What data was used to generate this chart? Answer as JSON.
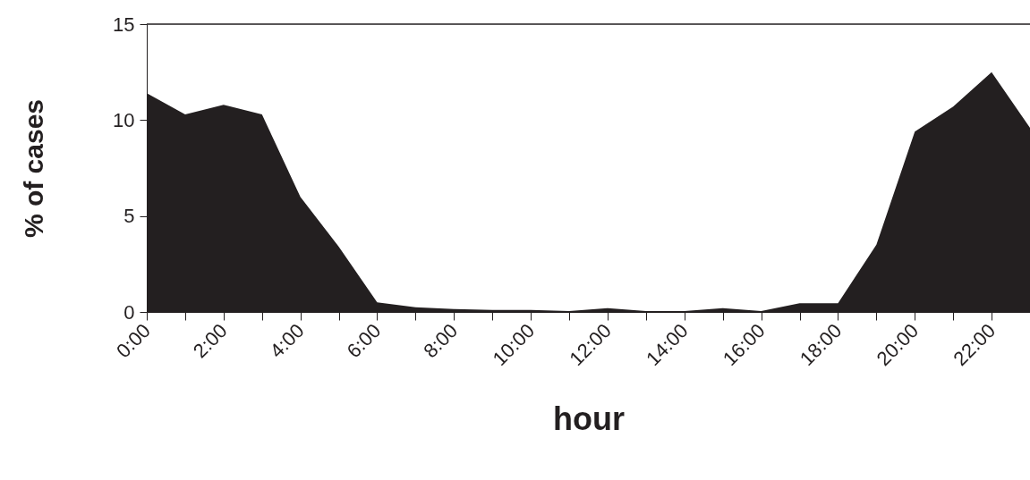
{
  "chart_data": {
    "type": "area",
    "xlabel": "hour",
    "ylabel": "% of cases",
    "x": [
      0,
      1,
      2,
      3,
      4,
      5,
      6,
      7,
      8,
      9,
      10,
      11,
      12,
      13,
      14,
      15,
      16,
      17,
      18,
      19,
      20,
      21,
      22,
      23
    ],
    "series": [
      {
        "color": "#231f20",
        "values": [
          11.4,
          10.3,
          10.8,
          10.3,
          6.0,
          3.4,
          0.5,
          0.25,
          0.15,
          0.1,
          0.1,
          0.05,
          0.2,
          0.05,
          0.05,
          0.2,
          0.05,
          0.45,
          0.45,
          3.5,
          9.4,
          10.7,
          12.5,
          9.6
        ]
      }
    ],
    "xlim": [
      0,
      23
    ],
    "xticks": [
      {
        "value": 0,
        "label": "0:00"
      },
      {
        "value": 1,
        "label": null
      },
      {
        "value": 2,
        "label": "2:00"
      },
      {
        "value": 3,
        "label": null
      },
      {
        "value": 4,
        "label": "4:00"
      },
      {
        "value": 5,
        "label": null
      },
      {
        "value": 6,
        "label": "6:00"
      },
      {
        "value": 7,
        "label": null
      },
      {
        "value": 8,
        "label": "8:00"
      },
      {
        "value": 9,
        "label": null
      },
      {
        "value": 10,
        "label": "10:00"
      },
      {
        "value": 11,
        "label": null
      },
      {
        "value": 12,
        "label": "12:00"
      },
      {
        "value": 13,
        "label": null
      },
      {
        "value": 14,
        "label": "14:00"
      },
      {
        "value": 15,
        "label": null
      },
      {
        "value": 16,
        "label": "16:00"
      },
      {
        "value": 17,
        "label": null
      },
      {
        "value": 18,
        "label": "18:00"
      },
      {
        "value": 19,
        "label": null
      },
      {
        "value": 20,
        "label": "20:00"
      },
      {
        "value": 21,
        "label": null
      },
      {
        "value": 22,
        "label": "22:00"
      },
      {
        "value": 23,
        "label": null
      }
    ],
    "ylim": [
      0,
      15
    ],
    "yticks": [
      0,
      5,
      10,
      15
    ],
    "grid": false
  }
}
